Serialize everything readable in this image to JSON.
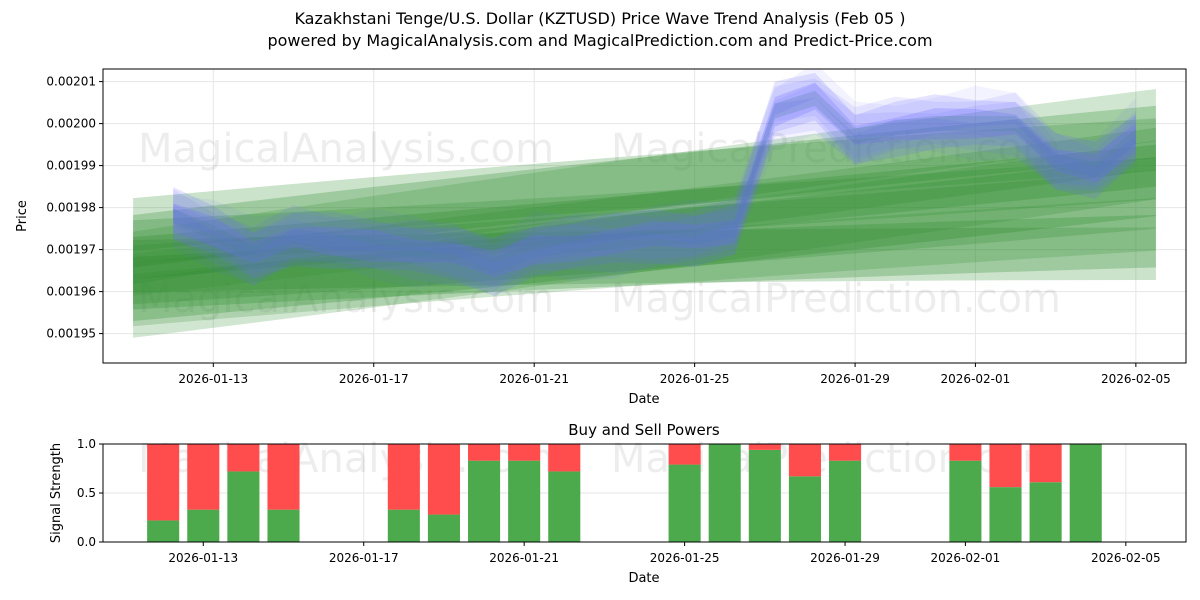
{
  "title_line1": "Kazakhstani Tenge/U.S. Dollar (KZTUSD) Price Wave Trend Analysis (Feb 05 )",
  "title_line2": "powered by MagicalAnalysis.com and MagicalPrediction.com and Predict-Price.com",
  "watermarks": [
    "MagicalAnalysis.com",
    "MagicalPrediction.com"
  ],
  "chart_data": [
    {
      "type": "area",
      "title": "",
      "xlabel": "Date",
      "ylabel": "Price",
      "x_tick_labels": [
        "2026-01-13",
        "2026-01-17",
        "2026-01-21",
        "2026-01-25",
        "2026-01-29",
        "2026-02-01",
        "2026-02-05"
      ],
      "y_tick_labels": [
        "0.00195",
        "0.00196",
        "0.00197",
        "0.00198",
        "0.00199",
        "0.00200",
        "0.00201"
      ],
      "ylim": [
        0.001943,
        0.002013
      ],
      "grid": true,
      "blue_wave_center": {
        "dates": [
          "2026-01-12",
          "2026-01-13",
          "2026-01-14",
          "2026-01-15",
          "2026-01-16",
          "2026-01-17",
          "2026-01-18",
          "2026-01-19",
          "2026-01-20",
          "2026-01-21",
          "2026-01-22",
          "2026-01-23",
          "2026-01-24",
          "2026-01-25",
          "2026-01-26",
          "2026-01-27",
          "2026-01-28",
          "2026-01-29",
          "2026-01-30",
          "2026-01-31",
          "2026-02-01",
          "2026-02-02",
          "2026-02-03",
          "2026-02-04",
          "2026-02-05"
        ],
        "values": [
          0.001978,
          0.001974,
          0.001969,
          0.001973,
          0.001972,
          0.001971,
          0.00197,
          0.001969,
          0.001966,
          0.00197,
          0.001971,
          0.001972,
          0.001973,
          0.001973,
          0.001975,
          0.002003,
          0.002006,
          0.001997,
          0.001999,
          0.002,
          0.002,
          0.002,
          0.001991,
          0.001989,
          0.001997
        ]
      },
      "green_bands": [
        {
          "start": [
            "2026-01-11",
            0.001972
          ],
          "end": [
            "2026-02-05",
            0.001998
          ],
          "width": 1.25e-05
        },
        {
          "start": [
            "2026-01-11",
            0.001968
          ],
          "end": [
            "2026-02-05",
            0.00199
          ],
          "width": 1e-05
        },
        {
          "start": [
            "2026-01-11",
            0.001962
          ],
          "end": [
            "2026-02-05",
            0.001972
          ],
          "width": 1.25e-05
        },
        {
          "start": [
            "2026-01-11",
            0.00196
          ],
          "end": [
            "2026-02-05",
            0.001985
          ],
          "width": 1.4e-05
        }
      ]
    },
    {
      "type": "bar",
      "title": "Buy and Sell Powers",
      "xlabel": "Date",
      "ylabel": "Signal Strength",
      "x_tick_labels": [
        "2026-01-13",
        "2026-01-17",
        "2026-01-21",
        "2026-01-25",
        "2026-01-29",
        "2026-02-01",
        "2026-02-05"
      ],
      "y_tick_labels": [
        "0.0",
        "0.5",
        "1.0"
      ],
      "ylim": [
        0,
        1
      ],
      "series": [
        {
          "name": "Buy",
          "color": "#4caa4c"
        },
        {
          "name": "Sell",
          "color": "#ff4d4d"
        }
      ],
      "dates": [
        "2026-01-12",
        "2026-01-13",
        "2026-01-14",
        "2026-01-15",
        "2026-01-18",
        "2026-01-19",
        "2026-01-20",
        "2026-01-21",
        "2026-01-22",
        "2026-01-25",
        "2026-01-26",
        "2026-01-27",
        "2026-01-28",
        "2026-01-29",
        "2026-02-01",
        "2026-02-02",
        "2026-02-03",
        "2026-02-04"
      ],
      "buy_values": [
        0.22,
        0.33,
        0.72,
        0.33,
        0.33,
        0.28,
        0.83,
        0.83,
        0.72,
        0.79,
        1.0,
        0.94,
        0.67,
        0.83,
        0.83,
        0.56,
        0.61,
        1.0
      ]
    }
  ]
}
